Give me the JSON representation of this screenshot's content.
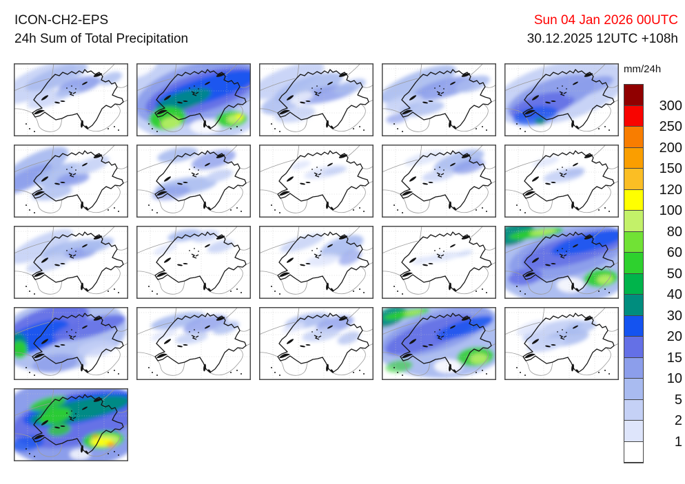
{
  "header": {
    "model": "ICON-CH2-EPS",
    "product": "24h Sum of Total Precipitation",
    "valid_time": "Sun 04 Jan 2026 00UTC",
    "valid_time_color": "#ff0000",
    "run_time": "30.12.2025 12UTC +108h",
    "run_time_color": "#111111"
  },
  "legend": {
    "unit": "mm/24h",
    "labels": [
      "300",
      "250",
      "200",
      "150",
      "120",
      "100",
      "80",
      "60",
      "50",
      "40",
      "30",
      "20",
      "15",
      "10",
      "5",
      "2",
      "1"
    ],
    "colors": [
      "#900000",
      "#f80400",
      "#f87d00",
      "#fa9e00",
      "#fbbe24",
      "#ffff00",
      "#c3f169",
      "#71e235",
      "#2ed12e",
      "#00b44b",
      "#008d7e",
      "#1453f0",
      "#6470e6",
      "#8c9eeb",
      "#a9bbf0",
      "#c5d1f6",
      "#dee5fb",
      "#ffffff"
    ]
  },
  "panels": [
    {
      "blobs": [
        [
          35,
          28,
          60,
          20,
          -25,
          "#C5D1F6",
          0.9
        ],
        [
          62,
          20,
          48,
          13,
          -20,
          "#A9BBF0",
          0.85
        ],
        [
          95,
          32,
          32,
          11,
          -15,
          "#8C9EEB",
          0.9
        ],
        [
          140,
          22,
          18,
          8,
          -20,
          "#A9BBF0",
          0.8
        ],
        [
          50,
          52,
          32,
          10,
          -18,
          "#C5D1F6",
          0.8
        ],
        [
          78,
          42,
          18,
          6,
          -12,
          "#A9BBF0",
          0.8
        ]
      ]
    },
    {
      "blobs": [
        [
          85,
          50,
          108,
          66,
          0,
          "#C5D1F6",
          1
        ],
        [
          90,
          42,
          95,
          42,
          -16,
          "#8C9EEB",
          0.95
        ],
        [
          95,
          42,
          85,
          28,
          -17,
          "#6470E6",
          0.95
        ],
        [
          102,
          38,
          78,
          18,
          -17,
          "#1453F0",
          0.9
        ],
        [
          6,
          6,
          26,
          12,
          -25,
          "#FFFFFF",
          0.9
        ],
        [
          100,
          92,
          22,
          11,
          0,
          "#FFFFFF",
          0.85
        ],
        [
          68,
          54,
          42,
          13,
          -18,
          "#008D7E",
          0.85
        ],
        [
          45,
          80,
          27,
          17,
          -8,
          "#2ED12E",
          0.95
        ],
        [
          50,
          87,
          15,
          9,
          -8,
          "#C3F169",
          0.85
        ],
        [
          138,
          81,
          23,
          12,
          -4,
          "#2ED12E",
          0.9
        ],
        [
          143,
          81,
          12,
          7,
          -4,
          "#C3F169",
          0.9
        ],
        [
          150,
          77,
          6,
          4,
          0,
          "#FFFF00",
          0.85
        ]
      ]
    },
    {
      "blobs": [
        [
          40,
          25,
          58,
          18,
          -22,
          "#C5D1F6",
          0.92
        ],
        [
          72,
          35,
          52,
          15,
          -18,
          "#A9BBF0",
          0.9
        ],
        [
          97,
          45,
          45,
          11,
          -12,
          "#8C9EEB",
          0.85
        ],
        [
          30,
          60,
          28,
          13,
          -15,
          "#A9BBF0",
          0.85
        ],
        [
          52,
          74,
          30,
          11,
          -10,
          "#C5D1F6",
          0.85
        ],
        [
          132,
          34,
          24,
          9,
          -20,
          "#A9BBF0",
          0.8
        ],
        [
          62,
          50,
          18,
          7,
          -20,
          "#FFFFFF",
          0.7
        ]
      ]
    },
    {
      "blobs": [
        [
          52,
          30,
          60,
          17,
          -22,
          "#A9BBF0",
          0.9
        ],
        [
          92,
          36,
          48,
          13,
          -15,
          "#8C9EEB",
          0.9
        ],
        [
          132,
          30,
          26,
          10,
          -18,
          "#A9BBF0",
          0.85
        ],
        [
          32,
          58,
          28,
          11,
          -15,
          "#C5D1F6",
          0.9
        ],
        [
          58,
          66,
          33,
          10,
          -10,
          "#A9BBF0",
          0.8
        ],
        [
          22,
          80,
          16,
          7,
          -10,
          "#8C9EEB",
          0.7
        ]
      ]
    },
    {
      "blobs": [
        [
          80,
          42,
          100,
          42,
          -15,
          "#C5D1F6",
          0.95
        ],
        [
          68,
          48,
          68,
          24,
          -20,
          "#8C9EEB",
          0.95
        ],
        [
          55,
          62,
          48,
          17,
          -15,
          "#6470E6",
          0.9
        ],
        [
          45,
          76,
          33,
          13,
          -10,
          "#1453F0",
          0.7
        ],
        [
          52,
          84,
          8,
          5,
          0,
          "#008D7E",
          0.85
        ],
        [
          122,
          34,
          38,
          11,
          -18,
          "#8C9EEB",
          0.85
        ],
        [
          142,
          82,
          28,
          16,
          0,
          "#FFFFFF",
          0.85
        ]
      ]
    },
    {
      "blobs": [
        [
          30,
          34,
          55,
          19,
          -28,
          "#A9BBF0",
          0.95
        ],
        [
          20,
          50,
          40,
          13,
          -28,
          "#8C9EEB",
          0.9
        ],
        [
          70,
          44,
          40,
          15,
          -15,
          "#A9BBF0",
          0.9
        ],
        [
          86,
          50,
          24,
          9,
          -10,
          "#8C9EEB",
          0.85
        ],
        [
          112,
          30,
          28,
          10,
          -20,
          "#C5D1F6",
          0.9
        ],
        [
          55,
          70,
          30,
          10,
          -10,
          "#A9BBF0",
          0.8
        ]
      ]
    },
    {
      "blobs": [
        [
          60,
          15,
          30,
          10,
          -10,
          "#A9BBF0",
          0.9
        ],
        [
          112,
          22,
          33,
          12,
          -15,
          "#8C9EEB",
          0.8
        ],
        [
          72,
          60,
          45,
          12,
          -8,
          "#A9BBF0",
          0.9
        ],
        [
          50,
          70,
          28,
          10,
          -10,
          "#8C9EEB",
          0.7
        ],
        [
          120,
          45,
          20,
          8,
          -15,
          "#C5D1F6",
          0.9
        ]
      ]
    },
    {
      "blobs": [
        [
          95,
          40,
          30,
          8,
          -12,
          "#DEE5FB",
          0.95
        ],
        [
          110,
          38,
          18,
          5,
          -12,
          "#C5D1F6",
          0.85
        ],
        [
          60,
          30,
          15,
          5,
          -15,
          "#DEE5FB",
          0.85
        ]
      ]
    },
    {
      "blobs": [
        [
          112,
          24,
          38,
          13,
          -18,
          "#A9BBF0",
          0.9
        ],
        [
          126,
          32,
          24,
          9,
          -15,
          "#8C9EEB",
          0.8
        ],
        [
          62,
          20,
          30,
          8,
          -15,
          "#DEE5FB",
          0.9
        ],
        [
          82,
          45,
          24,
          8,
          -10,
          "#C5D1F6",
          0.8
        ]
      ]
    },
    {
      "blobs": [
        [
          86,
          45,
          30,
          9,
          -10,
          "#C5D1F6",
          0.9
        ],
        [
          100,
          40,
          17,
          6,
          -12,
          "#A9BBF0",
          0.75
        ],
        [
          60,
          25,
          20,
          6,
          -15,
          "#DEE5FB",
          0.85
        ]
      ]
    },
    {
      "blobs": [
        [
          40,
          30,
          50,
          15,
          -25,
          "#C5D1F6",
          0.9
        ],
        [
          85,
          35,
          45,
          13,
          -12,
          "#A9BBF0",
          0.9
        ],
        [
          96,
          40,
          24,
          8,
          -10,
          "#8C9EEB",
          0.85
        ],
        [
          122,
          28,
          24,
          9,
          -18,
          "#A9BBF0",
          0.8
        ],
        [
          50,
          55,
          33,
          10,
          -15,
          "#C5D1F6",
          0.85
        ]
      ]
    },
    {
      "blobs": [
        [
          70,
          14,
          25,
          8,
          -10,
          "#A9BBF0",
          0.9
        ],
        [
          100,
          15,
          20,
          8,
          -12,
          "#C5D1F6",
          0.9
        ],
        [
          122,
          30,
          20,
          8,
          -15,
          "#C5D1F6",
          0.85
        ],
        [
          42,
          34,
          18,
          6,
          -20,
          "#DEE5FB",
          0.85
        ]
      ]
    },
    {
      "blobs": [
        [
          120,
          30,
          33,
          13,
          -20,
          "#A9BBF0",
          0.9
        ],
        [
          132,
          46,
          18,
          9,
          -25,
          "#8C9EEB",
          0.7
        ],
        [
          62,
          25,
          33,
          9,
          -18,
          "#C5D1F6",
          0.85
        ],
        [
          92,
          50,
          24,
          8,
          -10,
          "#DEE5FB",
          0.85
        ]
      ]
    },
    {
      "blobs": [
        [
          90,
          45,
          24,
          6,
          -10,
          "#DEE5FB",
          0.9
        ],
        [
          60,
          50,
          17,
          5,
          -10,
          "#DEE5FB",
          0.85
        ],
        [
          120,
          40,
          12,
          4,
          -15,
          "#C5D1F6",
          0.7
        ]
      ]
    },
    {
      "blobs": [
        [
          85,
          50,
          108,
          66,
          0,
          "#A9BBF0",
          0.95
        ],
        [
          92,
          40,
          88,
          33,
          -15,
          "#8C9EEB",
          0.95
        ],
        [
          102,
          34,
          78,
          20,
          -15,
          "#6470E6",
          0.9
        ],
        [
          122,
          24,
          56,
          13,
          -15,
          "#1453F0",
          0.85
        ],
        [
          14,
          12,
          30,
          15,
          -20,
          "#008D7E",
          0.95
        ],
        [
          46,
          11,
          40,
          7,
          -8,
          "#2ED12E",
          0.9
        ],
        [
          56,
          9,
          20,
          4,
          -8,
          "#C3F169",
          0.85
        ],
        [
          96,
          86,
          20,
          11,
          0,
          "#FFFFFF",
          0.85
        ],
        [
          30,
          74,
          25,
          12,
          -10,
          "#6470E6",
          0.85
        ],
        [
          140,
          76,
          25,
          13,
          -5,
          "#2ED12E",
          0.9
        ],
        [
          146,
          78,
          12,
          7,
          -5,
          "#C3F169",
          0.85
        ]
      ]
    },
    {
      "blobs": [
        [
          70,
          40,
          95,
          52,
          -10,
          "#A9BBF0",
          0.92
        ],
        [
          45,
          30,
          68,
          27,
          -22,
          "#6470E6",
          0.95
        ],
        [
          30,
          45,
          54,
          19,
          -22,
          "#1453F0",
          0.9
        ],
        [
          5,
          53,
          14,
          17,
          -10,
          "#008D7E",
          0.85
        ],
        [
          8,
          62,
          12,
          13,
          -10,
          "#2ED12E",
          0.9
        ],
        [
          110,
          30,
          54,
          13,
          -15,
          "#6470E6",
          0.9
        ],
        [
          137,
          76,
          34,
          19,
          0,
          "#FFFFFF",
          0.92
        ],
        [
          120,
          60,
          28,
          11,
          -10,
          "#C5D1F6",
          0.8
        ],
        [
          60,
          82,
          33,
          13,
          -8,
          "#8C9EEB",
          0.8
        ]
      ]
    },
    {
      "blobs": [
        [
          60,
          20,
          40,
          10,
          -12,
          "#A9BBF0",
          0.9
        ],
        [
          100,
          25,
          33,
          11,
          -15,
          "#8C9EEB",
          0.8
        ],
        [
          130,
          30,
          20,
          8,
          -18,
          "#A9BBF0",
          0.8
        ],
        [
          80,
          45,
          24,
          8,
          -10,
          "#C5D1F6",
          0.85
        ],
        [
          40,
          40,
          20,
          6,
          -20,
          "#DEE5FB",
          0.8
        ]
      ]
    },
    {
      "blobs": [
        [
          70,
          20,
          33,
          10,
          -12,
          "#A9BBF0",
          0.85
        ],
        [
          110,
          25,
          28,
          11,
          -15,
          "#8C9EEB",
          0.8
        ],
        [
          90,
          40,
          28,
          9,
          -10,
          "#C5D1F6",
          0.85
        ],
        [
          130,
          45,
          17,
          8,
          -20,
          "#A9BBF0",
          0.7
        ],
        [
          50,
          30,
          17,
          6,
          -18,
          "#DEE5FB",
          0.8
        ]
      ]
    },
    {
      "blobs": [
        [
          85,
          45,
          104,
          58,
          0,
          "#A9BBF0",
          0.95
        ],
        [
          80,
          35,
          84,
          28,
          -18,
          "#8C9EEB",
          0.95
        ],
        [
          70,
          40,
          68,
          19,
          -20,
          "#6470E6",
          0.9
        ],
        [
          120,
          30,
          44,
          11,
          -18,
          "#1453F0",
          0.8
        ],
        [
          12,
          14,
          26,
          13,
          -22,
          "#008D7E",
          0.9
        ],
        [
          36,
          10,
          34,
          6,
          -10,
          "#2ED12E",
          0.9
        ],
        [
          46,
          8,
          15,
          3,
          -10,
          "#C3F169",
          0.8
        ],
        [
          96,
          86,
          20,
          10,
          0,
          "#FFFFFF",
          0.88
        ],
        [
          136,
          72,
          27,
          14,
          -5,
          "#2ED12E",
          0.85
        ],
        [
          141,
          75,
          13,
          8,
          -5,
          "#C3F169",
          0.8
        ],
        [
          25,
          86,
          20,
          9,
          -8,
          "#2ED12E",
          0.6
        ]
      ]
    },
    {
      "blobs": [
        [
          70,
          35,
          45,
          13,
          -15,
          "#C5D1F6",
          0.95
        ],
        [
          90,
          45,
          33,
          11,
          -10,
          "#A9BBF0",
          0.85
        ],
        [
          60,
          55,
          28,
          9,
          -12,
          "#C5D1F6",
          0.9
        ],
        [
          110,
          30,
          24,
          9,
          -15,
          "#A9BBF0",
          0.8
        ],
        [
          40,
          30,
          24,
          8,
          -20,
          "#DEE5FB",
          0.85
        ]
      ]
    },
    {
      "blobs": [
        [
          85,
          50,
          108,
          66,
          0,
          "#8C9EEB",
          1
        ],
        [
          90,
          45,
          95,
          38,
          -12,
          "#6470E6",
          0.95
        ],
        [
          96,
          30,
          84,
          20,
          -12,
          "#1453F0",
          0.92
        ],
        [
          96,
          32,
          74,
          15,
          -12,
          "#008D7E",
          0.95
        ],
        [
          60,
          40,
          24,
          11,
          -15,
          "#2ED12E",
          0.9
        ],
        [
          50,
          22,
          28,
          9,
          -15,
          "#2ED12E",
          0.85
        ],
        [
          66,
          60,
          17,
          9,
          -10,
          "#2ED12E",
          0.75
        ],
        [
          130,
          75,
          30,
          13,
          -5,
          "#2ED12E",
          0.92
        ],
        [
          132,
          76,
          22,
          9,
          -5,
          "#C3F169",
          0.92
        ],
        [
          128,
          78,
          16,
          6,
          -3,
          "#FFFF00",
          0.92
        ],
        [
          141,
          82,
          6,
          4,
          0,
          "#FA9E00",
          0.85
        ],
        [
          118,
          70,
          5,
          3,
          0,
          "#FA9E00",
          0.7
        ],
        [
          96,
          96,
          15,
          8,
          0,
          "#FFFFFF",
          0.8
        ],
        [
          20,
          80,
          24,
          11,
          -10,
          "#1453F0",
          0.7
        ]
      ]
    }
  ]
}
